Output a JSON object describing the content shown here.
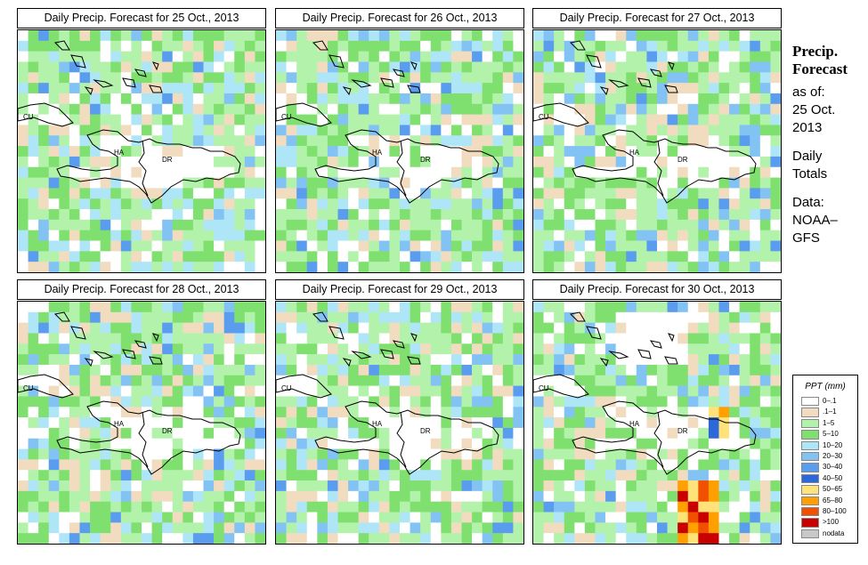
{
  "panels": [
    {
      "title": "Daily Precip. Forecast for  25 Oct., 2013",
      "seed": 11,
      "bias": 0.45
    },
    {
      "title": "Daily Precip. Forecast for  26 Oct., 2013",
      "seed": 23,
      "bias": 0.4
    },
    {
      "title": "Daily Precip. Forecast for  27 Oct., 2013",
      "seed": 37,
      "bias": 0.25
    },
    {
      "title": "Daily Precip. Forecast for  28 Oct., 2013",
      "seed": 41,
      "bias": 0.35
    },
    {
      "title": "Daily Precip. Forecast for  29 Oct., 2013",
      "seed": 53,
      "bias": 0.35
    },
    {
      "title": "Daily Precip. Forecast for  30 Oct., 2013",
      "seed": 67,
      "bias": 0.3,
      "storm": true
    }
  ],
  "map_labels": {
    "cuba": "CU",
    "haiti": "HA",
    "dominican_republic": "DR"
  },
  "sidebar": {
    "title_line1": "Precip.",
    "title_line2": "Forecast",
    "asof_line1": "as of:",
    "asof_line2": "25 Oct.",
    "asof_line3": "2013",
    "daily_line1": "Daily",
    "daily_line2": "Totals",
    "data_line1": "Data:",
    "data_line2": "NOAA–",
    "data_line3": "GFS"
  },
  "legend": {
    "title": "PPT (mm)",
    "items": [
      {
        "label": "0–.1",
        "color": "#ffffff"
      },
      {
        "label": ".1–1",
        "color": "#f2dcc0"
      },
      {
        "label": "1–5",
        "color": "#b3f2ab"
      },
      {
        "label": "5–10",
        "color": "#7fe06f"
      },
      {
        "label": "10–20",
        "color": "#aee6f7"
      },
      {
        "label": "20–30",
        "color": "#82c3f3"
      },
      {
        "label": "30–40",
        "color": "#5a9ced"
      },
      {
        "label": "40–50",
        "color": "#2d68d8"
      },
      {
        "label": "50–65",
        "color": "#ffe37a"
      },
      {
        "label": "65–80",
        "color": "#ff9f00"
      },
      {
        "label": "80–100",
        "color": "#f05000"
      },
      {
        "label": ">100",
        "color": "#c80000"
      },
      {
        "label": "nodata",
        "color": "#c8c8c8"
      }
    ]
  }
}
